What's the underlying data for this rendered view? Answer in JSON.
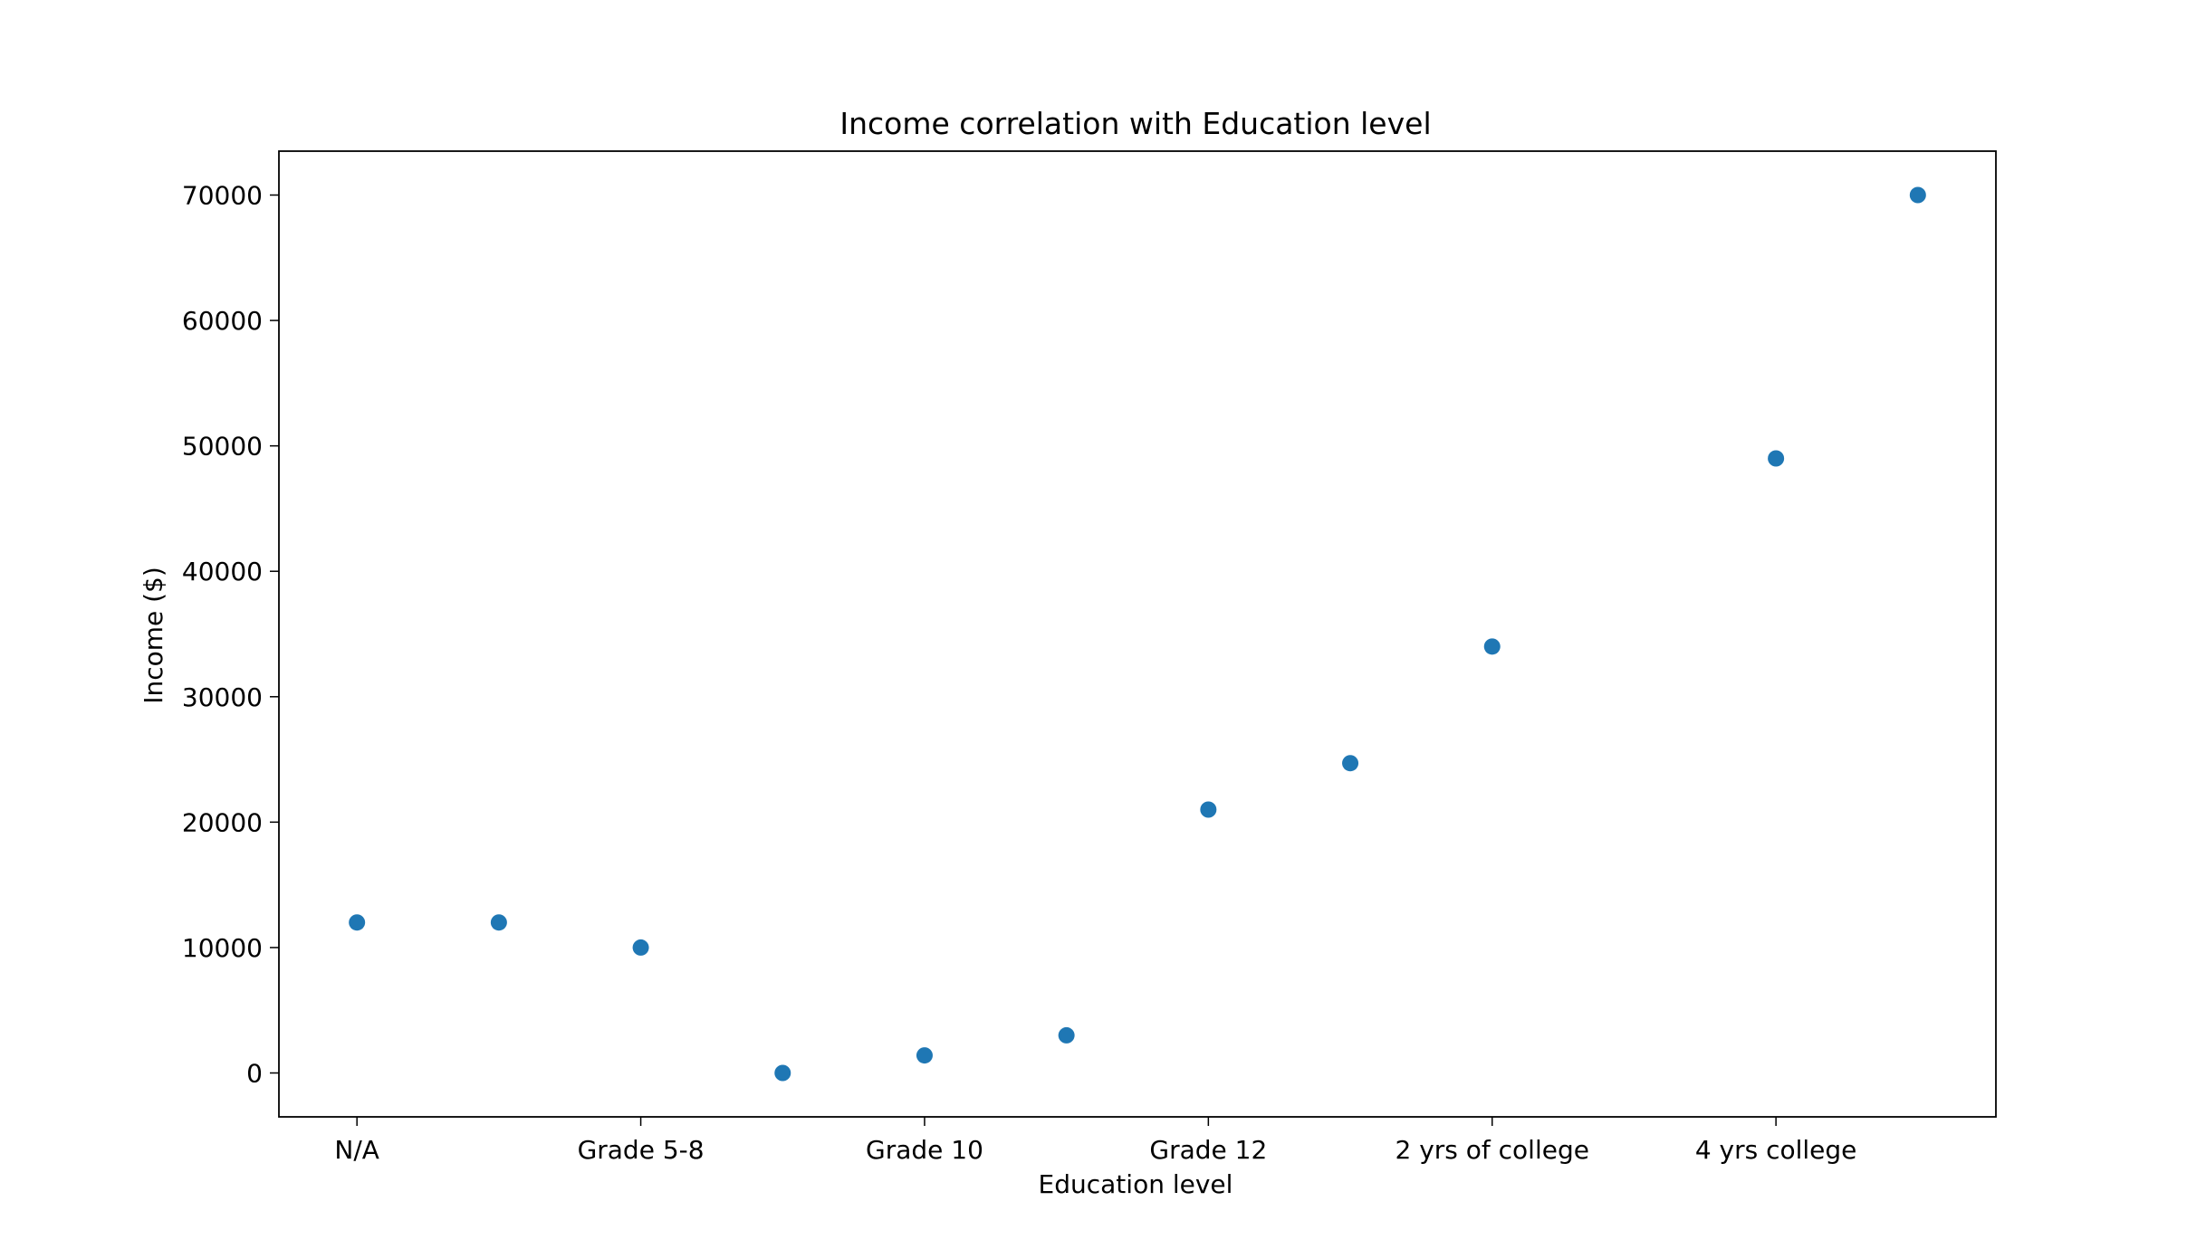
{
  "chart_data": {
    "type": "scatter",
    "title": "Income correlation with Education level",
    "xlabel": "Education level",
    "ylabel": "Income ($)",
    "x_tick_labels": [
      "N/A",
      "Grade 5-8",
      "Grade 10",
      "Grade 12",
      "2 yrs of college",
      "4 yrs college"
    ],
    "x_tick_positions": [
      0,
      2,
      4,
      6,
      8,
      10
    ],
    "y_ticks": [
      0,
      10000,
      20000,
      30000,
      40000,
      50000,
      60000,
      70000
    ],
    "xlim": [
      -0.55,
      11.55
    ],
    "ylim": [
      -3500,
      73500
    ],
    "grid": false,
    "marker_color": "#1f77b4",
    "points": [
      {
        "x": 0,
        "y": 12000
      },
      {
        "x": 1,
        "y": 12000
      },
      {
        "x": 2,
        "y": 10000
      },
      {
        "x": 3,
        "y": 0
      },
      {
        "x": 4,
        "y": 1400
      },
      {
        "x": 5,
        "y": 3000
      },
      {
        "x": 6,
        "y": 21000
      },
      {
        "x": 7,
        "y": 24700
      },
      {
        "x": 8,
        "y": 34000
      },
      {
        "x": 10,
        "y": 49000
      },
      {
        "x": 11,
        "y": 70000
      }
    ]
  }
}
